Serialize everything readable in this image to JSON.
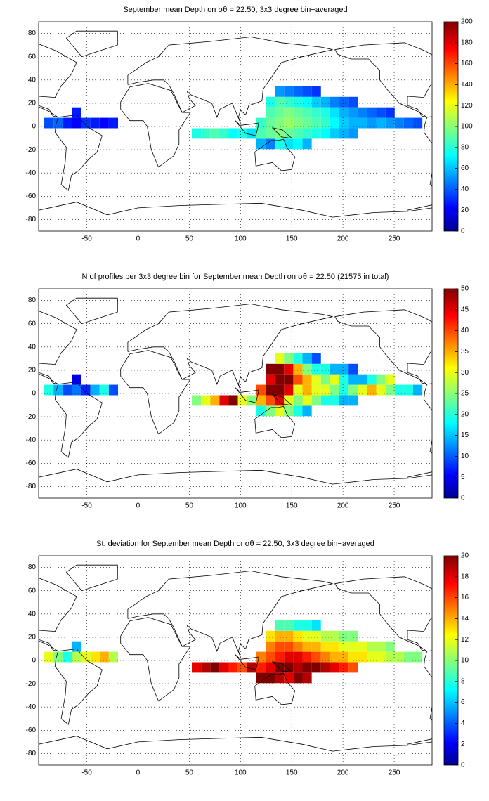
{
  "chart_data": [
    {
      "type": "heatmap",
      "title": "September mean Depth on σθ = 22.50, 3x3 degree bin−averaged",
      "xlim": [
        -97,
        287
      ],
      "ylim": [
        -90,
        90
      ],
      "xticks": [
        -50,
        0,
        50,
        100,
        150,
        200,
        250
      ],
      "yticks": [
        -80,
        -60,
        -40,
        -20,
        0,
        20,
        40,
        60,
        80
      ],
      "grid": true,
      "colormap": "jet",
      "clim": [
        0,
        200
      ],
      "cticks": [
        0,
        20,
        40,
        60,
        80,
        100,
        120,
        140,
        160,
        180,
        200
      ],
      "x": [
        -87,
        -78,
        -69,
        -60,
        -51,
        -42,
        -33,
        -24,
        -60,
        57,
        66,
        75,
        84,
        93,
        102,
        111,
        120,
        129,
        138,
        147,
        156,
        165,
        120,
        129,
        138,
        147,
        156,
        165,
        174,
        183,
        192,
        201,
        210,
        120,
        129,
        138,
        147,
        156,
        165,
        174,
        183,
        192,
        201,
        210,
        219,
        228,
        237,
        246,
        255,
        264,
        273,
        129,
        138,
        147,
        156,
        165,
        174,
        183,
        192,
        201,
        210,
        219,
        228,
        237,
        246,
        129,
        138,
        147,
        156,
        165,
        174,
        183,
        192,
        201,
        210,
        138,
        147,
        156,
        165,
        174
      ],
      "y": [
        3,
        3,
        3,
        3,
        3,
        3,
        3,
        3,
        12,
        -6,
        -6,
        -6,
        -6,
        -6,
        -6,
        -6,
        -15,
        -15,
        -15,
        -15,
        -15,
        -15,
        -6,
        -6,
        -6,
        -6,
        -6,
        -6,
        -6,
        -6,
        -6,
        -6,
        -6,
        3,
        3,
        3,
        3,
        3,
        3,
        3,
        3,
        3,
        3,
        3,
        3,
        3,
        3,
        3,
        3,
        3,
        3,
        12,
        12,
        12,
        12,
        12,
        12,
        12,
        12,
        12,
        12,
        12,
        12,
        12,
        12,
        21,
        21,
        21,
        21,
        21,
        21,
        21,
        21,
        21,
        21,
        30,
        30,
        30,
        30,
        30
      ],
      "values": [
        40,
        45,
        30,
        25,
        35,
        30,
        25,
        30,
        30,
        80,
        85,
        90,
        85,
        75,
        80,
        70,
        60,
        50,
        80,
        70,
        75,
        60,
        90,
        95,
        100,
        95,
        90,
        85,
        80,
        75,
        65,
        60,
        55,
        85,
        95,
        100,
        105,
        100,
        95,
        90,
        85,
        75,
        65,
        60,
        60,
        55,
        60,
        55,
        50,
        45,
        40,
        90,
        95,
        100,
        95,
        90,
        85,
        80,
        70,
        60,
        55,
        50,
        45,
        40,
        35,
        80,
        90,
        85,
        80,
        75,
        65,
        60,
        50,
        45,
        40,
        55,
        50,
        45,
        40,
        35
      ]
    },
    {
      "type": "heatmap",
      "title": "N of profiles per 3x3 degree bin for September mean Depth on σθ = 22.50 (21575 in total)",
      "xlim": [
        -97,
        287
      ],
      "ylim": [
        -90,
        90
      ],
      "xticks": [
        -50,
        0,
        50,
        100,
        150,
        200,
        250
      ],
      "yticks": [
        -80,
        -60,
        -40,
        -20,
        0,
        20,
        40,
        60,
        80
      ],
      "grid": true,
      "colormap": "jet",
      "clim": [
        0,
        50
      ],
      "cticks": [
        0,
        5,
        10,
        15,
        20,
        25,
        30,
        35,
        40,
        45,
        50
      ],
      "x": [
        -87,
        -78,
        -69,
        -60,
        -51,
        -42,
        -33,
        -24,
        -60,
        57,
        66,
        75,
        84,
        93,
        102,
        111,
        120,
        129,
        138,
        147,
        156,
        165,
        120,
        129,
        138,
        147,
        156,
        165,
        174,
        183,
        192,
        201,
        210,
        120,
        129,
        138,
        147,
        156,
        165,
        174,
        183,
        192,
        201,
        210,
        219,
        228,
        237,
        246,
        255,
        264,
        273,
        129,
        138,
        147,
        156,
        165,
        174,
        183,
        192,
        201,
        210,
        219,
        228,
        237,
        246,
        129,
        138,
        147,
        156,
        165,
        174,
        183,
        192,
        201,
        210,
        138,
        147,
        156,
        165,
        174
      ],
      "y": [
        3,
        3,
        3,
        3,
        3,
        3,
        3,
        3,
        12,
        -6,
        -6,
        -6,
        -6,
        -6,
        -6,
        -6,
        -15,
        -15,
        -15,
        -15,
        -15,
        -15,
        -6,
        -6,
        -6,
        -6,
        -6,
        -6,
        -6,
        -6,
        -6,
        -6,
        -6,
        3,
        3,
        3,
        3,
        3,
        3,
        3,
        3,
        3,
        3,
        3,
        3,
        3,
        3,
        3,
        3,
        3,
        3,
        12,
        12,
        12,
        12,
        12,
        12,
        12,
        12,
        12,
        12,
        12,
        12,
        12,
        12,
        21,
        21,
        21,
        21,
        21,
        21,
        21,
        21,
        21,
        21,
        30,
        30,
        30,
        30,
        30
      ],
      "values": [
        20,
        15,
        10,
        12,
        8,
        15,
        20,
        10,
        5,
        25,
        30,
        35,
        45,
        50,
        30,
        25,
        20,
        25,
        30,
        25,
        20,
        15,
        35,
        40,
        45,
        30,
        25,
        30,
        25,
        20,
        20,
        15,
        15,
        40,
        50,
        50,
        45,
        30,
        35,
        30,
        30,
        25,
        20,
        25,
        30,
        35,
        30,
        25,
        20,
        20,
        15,
        45,
        50,
        50,
        40,
        35,
        30,
        25,
        30,
        20,
        15,
        15,
        20,
        25,
        30,
        50,
        50,
        45,
        35,
        25,
        20,
        20,
        15,
        15,
        10,
        30,
        25,
        20,
        15,
        10
      ]
    },
    {
      "type": "heatmap",
      "title": "St. deviation for September mean Depth onσθ = 22.50, 3x3 degree bin−averaged",
      "xlim": [
        -97,
        287
      ],
      "ylim": [
        -90,
        90
      ],
      "xticks": [
        -50,
        0,
        50,
        100,
        150,
        200,
        250
      ],
      "yticks": [
        -80,
        -60,
        -40,
        -20,
        0,
        20,
        40,
        60,
        80
      ],
      "grid": true,
      "colormap": "jet",
      "clim": [
        0,
        20
      ],
      "cticks": [
        0,
        2,
        4,
        6,
        8,
        10,
        12,
        14,
        16,
        18,
        20
      ],
      "x": [
        -87,
        -78,
        -69,
        -60,
        -51,
        -42,
        -33,
        -24,
        -60,
        57,
        66,
        75,
        84,
        93,
        102,
        111,
        120,
        129,
        138,
        147,
        156,
        165,
        120,
        129,
        138,
        147,
        156,
        165,
        174,
        183,
        192,
        201,
        210,
        120,
        129,
        138,
        147,
        156,
        165,
        174,
        183,
        192,
        201,
        210,
        219,
        228,
        237,
        246,
        255,
        264,
        273,
        129,
        138,
        147,
        156,
        165,
        174,
        183,
        192,
        201,
        210,
        219,
        228,
        237,
        246,
        129,
        138,
        147,
        156,
        165,
        174,
        183,
        192,
        201,
        210,
        138,
        147,
        156,
        165,
        174
      ],
      "y": [
        3,
        3,
        3,
        3,
        3,
        3,
        3,
        3,
        12,
        -6,
        -6,
        -6,
        -6,
        -6,
        -6,
        -6,
        -15,
        -15,
        -15,
        -15,
        -15,
        -15,
        -6,
        -6,
        -6,
        -6,
        -6,
        -6,
        -6,
        -6,
        -6,
        -6,
        -6,
        3,
        3,
        3,
        3,
        3,
        3,
        3,
        3,
        3,
        3,
        3,
        3,
        3,
        3,
        3,
        3,
        3,
        3,
        12,
        12,
        12,
        12,
        12,
        12,
        12,
        12,
        12,
        12,
        12,
        12,
        12,
        12,
        21,
        21,
        21,
        21,
        21,
        21,
        21,
        21,
        21,
        21,
        30,
        30,
        30,
        30,
        30
      ],
      "values": [
        12,
        10,
        8,
        11,
        12,
        13,
        14,
        11,
        6,
        18,
        19,
        20,
        18,
        17,
        16,
        19,
        20,
        20,
        19,
        18,
        20,
        19,
        17,
        18,
        20,
        20,
        19,
        20,
        20,
        19,
        18,
        17,
        16,
        15,
        16,
        17,
        18,
        18,
        17,
        16,
        15,
        14,
        14,
        13,
        13,
        12,
        12,
        11,
        11,
        10,
        10,
        15,
        16,
        16,
        15,
        14,
        14,
        13,
        13,
        12,
        12,
        12,
        11,
        11,
        10,
        13,
        14,
        14,
        13,
        12,
        12,
        11,
        11,
        10,
        10,
        9,
        9,
        8,
        8,
        7
      ]
    }
  ]
}
